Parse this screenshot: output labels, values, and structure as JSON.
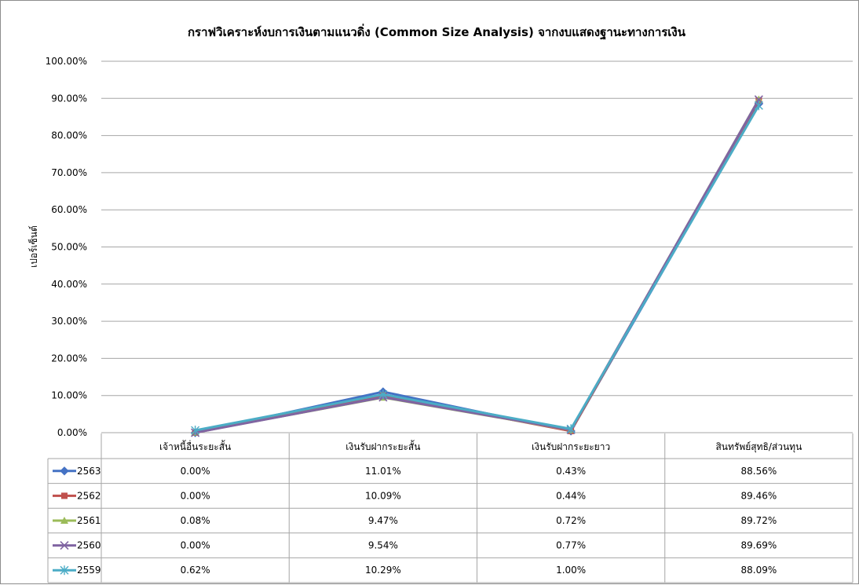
{
  "chart_data": {
    "type": "line",
    "title": "กราฟวิเคราะห์งบการเงินตามแนวดิ่ง (Common Size Analysis) จากงบแสดงฐานะทางการเงิน",
    "xlabel": "",
    "ylabel": "เปอร์เซ็นต์",
    "ylim": [
      0,
      100
    ],
    "y_ticks": [
      "0.00%",
      "10.00%",
      "20.00%",
      "30.00%",
      "40.00%",
      "50.00%",
      "60.00%",
      "70.00%",
      "80.00%",
      "90.00%",
      "100.00%"
    ],
    "grid": true,
    "legend": "data table",
    "categories": [
      "เจ้าหนี้อื่นระยะสั้น",
      "เงินรับฝากระยะสั้น",
      "เงินรับฝากระยะยาว",
      "สินทรัพย์สุทธิ/ส่วนทุน"
    ],
    "series": [
      {
        "name": "2563",
        "values": [
          0.0,
          11.01,
          0.43,
          88.56
        ],
        "labels": [
          "0.00%",
          "11.01%",
          "0.43%",
          "88.56%"
        ],
        "color": "#4472C4",
        "marker": "diamond"
      },
      {
        "name": "2562",
        "values": [
          0.0,
          10.09,
          0.44,
          89.46
        ],
        "labels": [
          "0.00%",
          "10.09%",
          "0.44%",
          "89.46%"
        ],
        "color": "#C0504D",
        "marker": "square"
      },
      {
        "name": "2561",
        "values": [
          0.08,
          9.47,
          0.72,
          89.72
        ],
        "labels": [
          "0.08%",
          "9.47%",
          "0.72%",
          "89.72%"
        ],
        "color": "#9BBB59",
        "marker": "triangle"
      },
      {
        "name": "2560",
        "values": [
          0.0,
          9.54,
          0.77,
          89.69
        ],
        "labels": [
          "0.00%",
          "9.54%",
          "0.77%",
          "89.69%"
        ],
        "color": "#8064A2",
        "marker": "x"
      },
      {
        "name": "2559",
        "values": [
          0.62,
          10.29,
          1.0,
          88.09
        ],
        "labels": [
          "0.62%",
          "10.29%",
          "1.00%",
          "88.09%"
        ],
        "color": "#4BACC6",
        "marker": "star"
      }
    ]
  }
}
